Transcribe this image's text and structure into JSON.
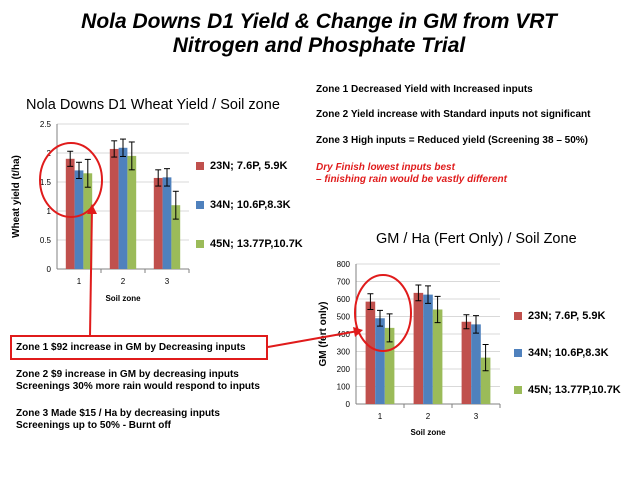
{
  "title": {
    "line1": "Nola Downs D1  Yield & Change in GM from VRT",
    "line2": "Nitrogen and Phosphate Trial"
  },
  "notes": [
    "Zone 1 Decreased Yield with Increased inputs",
    "Zone 2 Yield increase with Standard inputs not significant",
    "Zone 3 High inputs = Reduced yield (Screening 38 – 50%)"
  ],
  "red_note": {
    "line1": "Dry Finish lowest inputs best",
    "line2": "– finishing rain would be vastly different"
  },
  "callout": "Zone 1 $92 increase in GM by Decreasing inputs",
  "zone2_text": {
    "line1": "Zone 2  $9 increase in GM by decreasing inputs",
    "line2": "Screenings 30% more rain would respond to inputs"
  },
  "zone3_text": {
    "line1": "Zone 3  Made $15 / Ha by decreasing   inputs",
    "line2": "Screenings up to 50% - Burnt off"
  },
  "colors": {
    "series1": "#c0504d",
    "series2": "#4f81bd",
    "series3": "#9bbb59",
    "highlight": "#e01b1b"
  },
  "chart_data": [
    {
      "type": "bar",
      "title": "Nola Downs D1 Wheat Yield / Soil zone",
      "xlabel": "Soil zone",
      "ylabel": "Wheat yield (t/ha)",
      "categories": [
        "1",
        "2",
        "3"
      ],
      "ylim": [
        0,
        2.5
      ],
      "yticks": [
        "0",
        "0.5",
        "1",
        "1.5",
        "2",
        "2.5"
      ],
      "grid": true,
      "legend": "right",
      "series": [
        {
          "name": "23N; 7.6P, 5.9K",
          "values": [
            1.9,
            2.07,
            1.57
          ],
          "errors": [
            0.13,
            0.14,
            0.14
          ]
        },
        {
          "name": "34N; 10.6P,8.3K",
          "values": [
            1.7,
            2.09,
            1.58
          ],
          "errors": [
            0.14,
            0.15,
            0.15
          ]
        },
        {
          "name": "45N; 13.77P,10.7K",
          "values": [
            1.65,
            1.95,
            1.1
          ],
          "errors": [
            0.24,
            0.24,
            0.24
          ]
        }
      ]
    },
    {
      "type": "bar",
      "title": "GM / Ha (Fert Only) / Soil Zone",
      "xlabel": "Soil zone",
      "ylabel": "GM (fert only)",
      "categories": [
        "1",
        "2",
        "3"
      ],
      "ylim": [
        0,
        800
      ],
      "yticks": [
        "0",
        "100",
        "200",
        "300",
        "400",
        "500",
        "600",
        "700",
        "800"
      ],
      "grid": true,
      "legend": "right",
      "series": [
        {
          "name": "23N; 7.6P, 5.9K",
          "values": [
            585,
            635,
            470
          ],
          "errors": [
            45,
            45,
            40
          ]
        },
        {
          "name": "34N; 10.6P,8.3K",
          "values": [
            490,
            625,
            455
          ],
          "errors": [
            45,
            50,
            50
          ]
        },
        {
          "name": "45N; 13.77P,10.7K",
          "values": [
            435,
            540,
            265
          ],
          "errors": [
            80,
            75,
            75
          ]
        }
      ]
    }
  ]
}
